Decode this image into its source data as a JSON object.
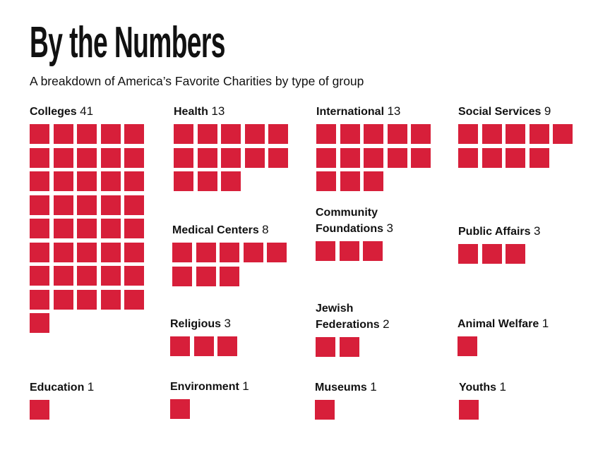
{
  "chart_data": {
    "type": "waffle",
    "title": "By the Numbers",
    "subtitle": "A breakdown of America’s Favorite Charities by type of group",
    "unit_color": "#d71f3a",
    "categories": [
      {
        "label": "Colleges",
        "value": 41
      },
      {
        "label": "Health",
        "value": 13
      },
      {
        "label": "International",
        "value": 13
      },
      {
        "label": "Social Services",
        "value": 9
      },
      {
        "label": "Medical Centers",
        "value": 8
      },
      {
        "label": "Community Foundations",
        "value": 3
      },
      {
        "label": "Public Affairs",
        "value": 3
      },
      {
        "label": "Religious",
        "value": 3
      },
      {
        "label": "Jewish Federations",
        "value": 2
      },
      {
        "label": "Animal Welfare",
        "value": 1
      },
      {
        "label": "Education",
        "value": 1
      },
      {
        "label": "Environment",
        "value": 1
      },
      {
        "label": "Museums",
        "value": 1
      },
      {
        "label": "Youths",
        "value": 1
      }
    ]
  }
}
